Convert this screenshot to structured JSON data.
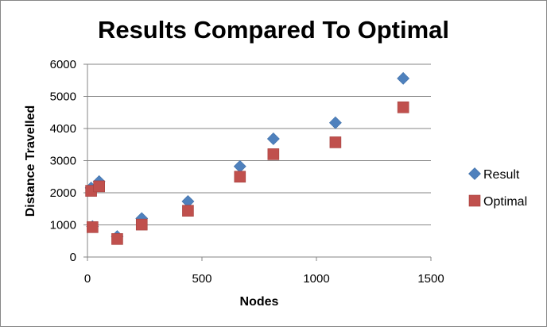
{
  "chart_data": {
    "type": "scatter",
    "title": "Results Compared To Optimal",
    "xlabel": "Nodes",
    "ylabel": "Distance Travelled",
    "xlim": [
      0,
      1500
    ],
    "ylim": [
      0,
      6000
    ],
    "xticks": [
      "0",
      "500",
      "1000",
      "1500"
    ],
    "yticks": [
      "0",
      "1000",
      "2000",
      "3000",
      "4000",
      "5000",
      "6000"
    ],
    "grid": "horizontal",
    "legend_position": "right",
    "series": [
      {
        "name": "Result",
        "marker": "diamond",
        "color": "#4f81bd",
        "points": [
          {
            "x": 16,
            "y": 2150
          },
          {
            "x": 22,
            "y": 950
          },
          {
            "x": 51,
            "y": 2350
          },
          {
            "x": 130,
            "y": 640
          },
          {
            "x": 237,
            "y": 1200
          },
          {
            "x": 439,
            "y": 1730
          },
          {
            "x": 666,
            "y": 2820
          },
          {
            "x": 812,
            "y": 3680
          },
          {
            "x": 1083,
            "y": 4180
          },
          {
            "x": 1379,
            "y": 5560
          }
        ]
      },
      {
        "name": "Optimal",
        "marker": "square",
        "color": "#c0504d",
        "points": [
          {
            "x": 16,
            "y": 2060
          },
          {
            "x": 22,
            "y": 930
          },
          {
            "x": 51,
            "y": 2200
          },
          {
            "x": 130,
            "y": 560
          },
          {
            "x": 237,
            "y": 1010
          },
          {
            "x": 439,
            "y": 1440
          },
          {
            "x": 666,
            "y": 2500
          },
          {
            "x": 812,
            "y": 3200
          },
          {
            "x": 1083,
            "y": 3570
          },
          {
            "x": 1379,
            "y": 4660
          }
        ]
      }
    ]
  }
}
